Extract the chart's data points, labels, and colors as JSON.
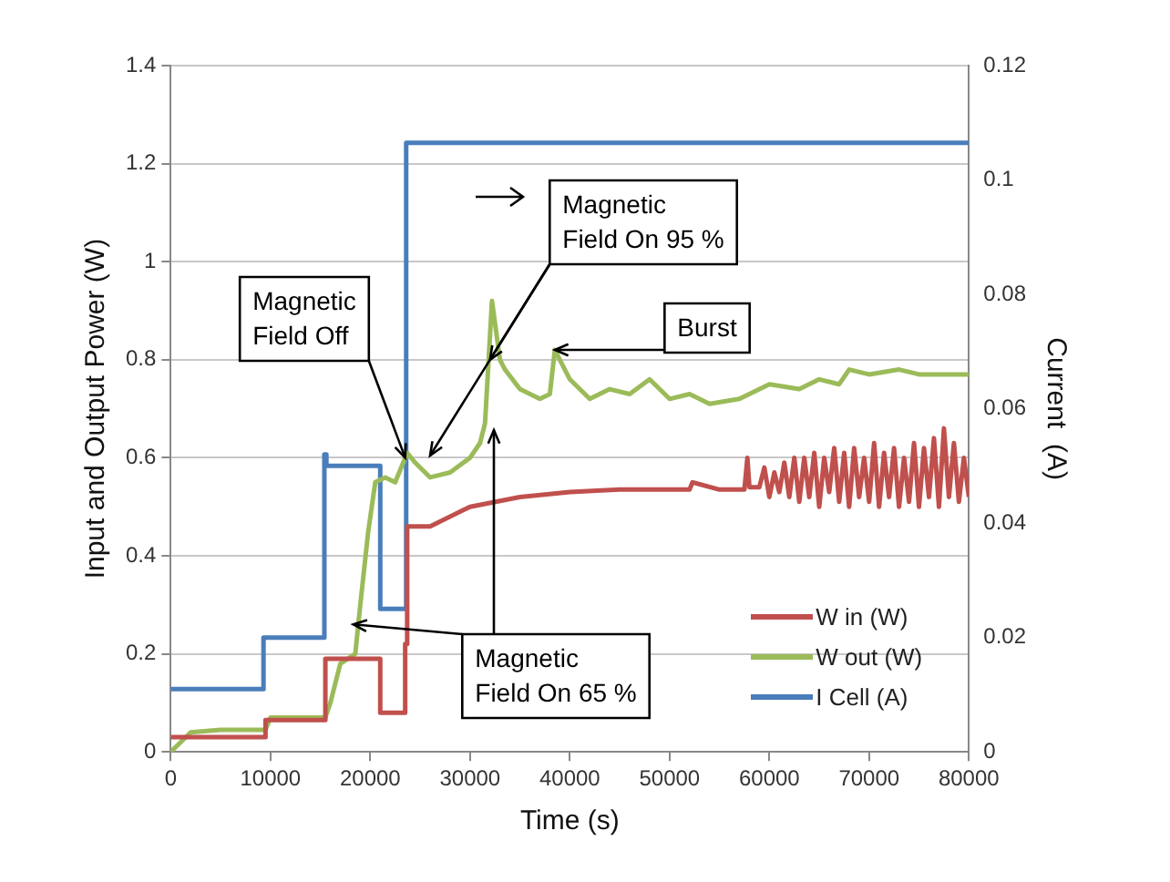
{
  "chart_data": {
    "type": "line",
    "xlabel": "Time (s)",
    "ylabel": "Input and Output Power (W)",
    "y2label": "Current  (A)",
    "xlim": [
      0,
      80000
    ],
    "xticks": [
      0,
      10000,
      20000,
      30000,
      40000,
      50000,
      60000,
      70000,
      80000
    ],
    "ylim": [
      0,
      1.4
    ],
    "yticks": [
      0,
      0.2,
      0.4,
      0.6,
      0.8,
      1,
      1.2,
      1.4
    ],
    "y2lim": [
      0,
      0.12
    ],
    "y2ticks": [
      0,
      0.02,
      0.04,
      0.06,
      0.08,
      0.1,
      0.12
    ],
    "grid": "y",
    "legend": "bottom right",
    "marker": "none",
    "line_style": "solid",
    "series": [
      {
        "name": "W in (W)",
        "color": "#c0504d",
        "x": [
          0,
          9500,
          9500,
          15500,
          15500,
          21000,
          21000,
          23500,
          23500,
          23700,
          23700,
          26000,
          30000,
          35000,
          40000,
          45000,
          50000,
          52000,
          52300,
          55000,
          57500,
          57800,
          58000,
          59000,
          59500,
          60000,
          60500,
          61000,
          61500,
          62000,
          62500,
          63000,
          63500,
          64000,
          64500,
          65000,
          65500,
          66000,
          66500,
          67000,
          67500,
          68000,
          68500,
          69000,
          69500,
          70000,
          70500,
          71000,
          71500,
          72000,
          72500,
          73000,
          73500,
          74000,
          74500,
          75000,
          75500,
          76000,
          76500,
          77000,
          77500,
          78000,
          78500,
          79000,
          79500,
          80000
        ],
        "values": [
          0.03,
          0.03,
          0.065,
          0.065,
          0.19,
          0.19,
          0.08,
          0.08,
          0.22,
          0.22,
          0.46,
          0.46,
          0.5,
          0.52,
          0.53,
          0.535,
          0.535,
          0.535,
          0.55,
          0.535,
          0.535,
          0.6,
          0.54,
          0.54,
          0.58,
          0.52,
          0.57,
          0.53,
          0.59,
          0.52,
          0.6,
          0.51,
          0.6,
          0.52,
          0.61,
          0.5,
          0.6,
          0.53,
          0.62,
          0.51,
          0.61,
          0.5,
          0.62,
          0.52,
          0.6,
          0.51,
          0.63,
          0.5,
          0.61,
          0.52,
          0.62,
          0.5,
          0.6,
          0.51,
          0.63,
          0.5,
          0.62,
          0.52,
          0.64,
          0.5,
          0.66,
          0.52,
          0.63,
          0.51,
          0.6,
          0.52
        ]
      },
      {
        "name": "W out (W)",
        "color": "#9bbb59",
        "x": [
          0,
          1000,
          2000,
          5000,
          9500,
          10000,
          15500,
          16000,
          17000,
          18500,
          19000,
          19800,
          20500,
          21500,
          22500,
          23700,
          24500,
          26000,
          28000,
          30000,
          31000,
          31500,
          32200,
          33000,
          33500,
          35000,
          37000,
          38000,
          38500,
          40000,
          42000,
          44000,
          46000,
          48000,
          50000,
          52000,
          54000,
          57000,
          60000,
          63000,
          65000,
          67000,
          68000,
          70000,
          73000,
          75000,
          80000
        ],
        "values": [
          0,
          0.02,
          0.04,
          0.045,
          0.045,
          0.07,
          0.07,
          0.1,
          0.18,
          0.2,
          0.3,
          0.45,
          0.55,
          0.56,
          0.55,
          0.61,
          0.59,
          0.56,
          0.57,
          0.6,
          0.63,
          0.67,
          0.92,
          0.8,
          0.78,
          0.74,
          0.72,
          0.73,
          0.82,
          0.76,
          0.72,
          0.74,
          0.73,
          0.76,
          0.72,
          0.73,
          0.71,
          0.72,
          0.75,
          0.74,
          0.76,
          0.75,
          0.78,
          0.77,
          0.78,
          0.77,
          0.77
        ]
      },
      {
        "name": "I Cell (A)",
        "color": "#4a7ebb",
        "axis": "y2",
        "x": [
          0,
          9300,
          9300,
          15400,
          15400,
          15600,
          15600,
          21000,
          21000,
          23600,
          23600,
          80000
        ],
        "values": [
          0.011,
          0.011,
          0.02,
          0.02,
          0.052,
          0.052,
          0.05,
          0.05,
          0.025,
          0.025,
          0.1065,
          0.1065
        ]
      }
    ],
    "annotations": [
      {
        "text": "Magnetic\nField Off",
        "x": 23500,
        "y": 0.6
      },
      {
        "text": "Magnetic\nField On 95 %",
        "x": 32000,
        "y": 0.8
      },
      {
        "text": "Burst",
        "x": 38500,
        "y": 0.82
      },
      {
        "text": "Magnetic\nField On 65 %",
        "x": 18300,
        "y": 0.26
      }
    ]
  }
}
